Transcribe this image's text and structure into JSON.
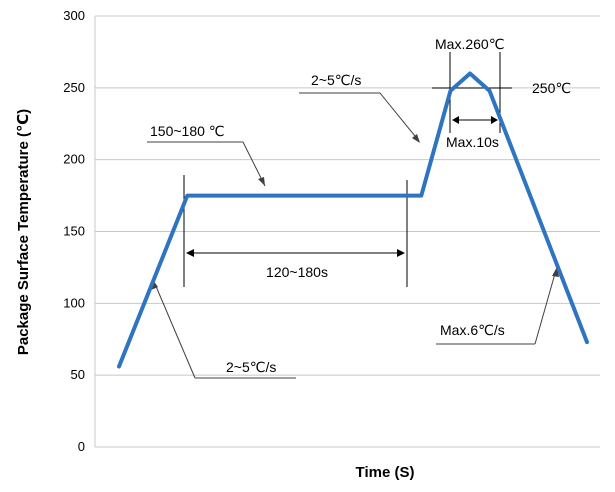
{
  "chart_data": {
    "type": "line",
    "title": "",
    "xlabel": "Time (S)",
    "ylabel": "Package Surface Temperature (℃)",
    "ylim": [
      0,
      300
    ],
    "yticks": [
      0,
      50,
      100,
      150,
      200,
      250,
      300
    ],
    "grid": true,
    "legend": "none",
    "series": [
      {
        "color": "#2f74c0",
        "points": [
          {
            "x": 0,
            "y": 56
          },
          {
            "x": 35,
            "y": 175
          },
          {
            "x": 155,
            "y": 175
          },
          {
            "x": 170,
            "y": 248
          },
          {
            "x": 180,
            "y": 260
          },
          {
            "x": 190,
            "y": 248
          },
          {
            "x": 240,
            "y": 73
          }
        ]
      }
    ],
    "annotations": {
      "preheat_temp": "150~180 ℃",
      "preheat_time": "120~180s",
      "ramp_up_1": "2~5℃/s",
      "ramp_up_2": "2~5℃/s",
      "peak": "Max.260℃",
      "ref_temp": "250℃",
      "peak_time": "Max.10s",
      "cool_rate": "Max.6℃/s"
    }
  }
}
